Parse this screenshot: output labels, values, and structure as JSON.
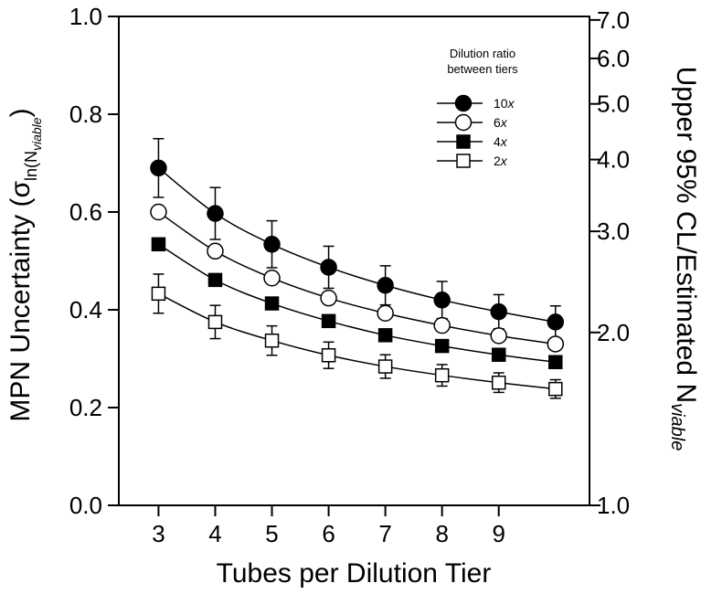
{
  "chart_data": {
    "type": "line",
    "x": [
      3,
      4,
      5,
      6,
      7,
      8,
      9,
      10
    ],
    "x_tick_labels": [
      "3",
      "4",
      "5",
      "6",
      "7",
      "8",
      "9"
    ],
    "x_ticks": [
      3,
      4,
      5,
      6,
      7,
      8,
      9
    ],
    "xlim": [
      2.3,
      10.6
    ],
    "xlabel": "Tubes per Dilution Tier",
    "ylabel": "MPN Uncertainty (σ",
    "ylabel_sub": "ln(N",
    "ylabel_subsub": "viable",
    "ylabel_close": ")",
    "ylim": [
      0,
      1.0
    ],
    "y_ticks": [
      0.0,
      0.2,
      0.4,
      0.6,
      0.8,
      1.0
    ],
    "y_tick_labels": [
      "0.0",
      "0.2",
      "0.4",
      "0.6",
      "0.8",
      "1.0"
    ],
    "y2label": "Upper 95% CL/Estimated N",
    "y2label_sub": "viable",
    "y2_scale": "log, exp(1.96·σ)",
    "y2_ticks": [
      1.0,
      2.0,
      3.0,
      4.0,
      5.0,
      6.0,
      7.0
    ],
    "y2_tick_labels": [
      "1.0",
      "2.0",
      "3.0",
      "4.0",
      "5.0",
      "6.0",
      "7.0"
    ],
    "grid": false,
    "legend": {
      "title_line1": "Dilution ratio",
      "title_line2": "between tiers",
      "placement": "top-right"
    },
    "series": [
      {
        "name": "10",
        "suffix": "x",
        "marker": "filled-circle",
        "values": [
          0.69,
          0.597,
          0.534,
          0.487,
          0.45,
          0.42,
          0.396,
          0.375
        ],
        "error": [
          0.06,
          0.053,
          0.048,
          0.043,
          0.04,
          0.038,
          0.035,
          0.033
        ]
      },
      {
        "name": "6",
        "suffix": "x",
        "marker": "open-circle",
        "values": [
          0.6,
          0.52,
          0.465,
          0.424,
          0.393,
          0.368,
          0.347,
          0.33
        ],
        "error": []
      },
      {
        "name": "4",
        "suffix": "x",
        "marker": "filled-square",
        "values": [
          0.534,
          0.461,
          0.413,
          0.377,
          0.348,
          0.326,
          0.308,
          0.293
        ],
        "error": []
      },
      {
        "name": "2",
        "suffix": "x",
        "marker": "open-square",
        "values": [
          0.433,
          0.375,
          0.337,
          0.307,
          0.284,
          0.266,
          0.251,
          0.238
        ],
        "error": [
          0.04,
          0.034,
          0.03,
          0.027,
          0.024,
          0.022,
          0.02,
          0.019
        ]
      }
    ]
  }
}
